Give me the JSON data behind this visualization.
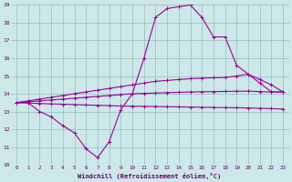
{
  "xlabel": "Windchill (Refroidissement éolien,°C)",
  "bg_color": "#cce8e8",
  "line_color": "#990099",
  "grid_color": "#99bbbb",
  "xlim": [
    -0.5,
    23.5
  ],
  "ylim": [
    10,
    19
  ],
  "yticks": [
    10,
    11,
    12,
    13,
    14,
    15,
    16,
    17,
    18,
    19
  ],
  "xticks": [
    0,
    1,
    2,
    3,
    4,
    5,
    6,
    7,
    8,
    9,
    10,
    11,
    12,
    13,
    14,
    15,
    16,
    17,
    18,
    19,
    20,
    21,
    22,
    23
  ],
  "line1_x": [
    0,
    1,
    2,
    3,
    4,
    5,
    6,
    7,
    8,
    9,
    10,
    11,
    12,
    13,
    14,
    15,
    16,
    17,
    18,
    19,
    20,
    21,
    22,
    23
  ],
  "line1_y": [
    13.5,
    13.5,
    13.0,
    12.7,
    12.2,
    11.8,
    10.9,
    10.4,
    11.3,
    13.1,
    14.0,
    16.0,
    18.3,
    18.8,
    18.9,
    19.0,
    18.3,
    17.2,
    17.2,
    15.6,
    15.1,
    14.6,
    14.1,
    14.1
  ],
  "line2_x": [
    0,
    1,
    2,
    3,
    4,
    5,
    6,
    7,
    8,
    9,
    10,
    11,
    12,
    13,
    14,
    15,
    16,
    17,
    18,
    19,
    20,
    21,
    22,
    23
  ],
  "line2_y": [
    13.5,
    13.55,
    13.6,
    13.65,
    13.7,
    13.75,
    13.8,
    13.85,
    13.9,
    13.95,
    14.0,
    14.02,
    14.04,
    14.06,
    14.08,
    14.1,
    14.11,
    14.12,
    14.13,
    14.14,
    14.15,
    14.12,
    14.1,
    14.1
  ],
  "line3_x": [
    0,
    1,
    2,
    3,
    4,
    5,
    6,
    7,
    8,
    9,
    10,
    11,
    12,
    13,
    14,
    15,
    16,
    17,
    18,
    19,
    20,
    21,
    22,
    23
  ],
  "line3_y": [
    13.5,
    13.6,
    13.7,
    13.8,
    13.9,
    14.0,
    14.1,
    14.2,
    14.3,
    14.4,
    14.5,
    14.6,
    14.7,
    14.75,
    14.8,
    14.85,
    14.88,
    14.9,
    14.92,
    15.0,
    15.1,
    14.8,
    14.5,
    14.1
  ],
  "line4_x": [
    0,
    1,
    2,
    3,
    4,
    5,
    6,
    7,
    8,
    9,
    10,
    11,
    12,
    13,
    14,
    15,
    16,
    17,
    18,
    19,
    20,
    21,
    22,
    23
  ],
  "line4_y": [
    13.5,
    13.48,
    13.45,
    13.43,
    13.41,
    13.39,
    13.37,
    13.35,
    13.33,
    13.31,
    13.3,
    13.29,
    13.28,
    13.27,
    13.26,
    13.25,
    13.24,
    13.23,
    13.22,
    13.21,
    13.2,
    13.18,
    13.16,
    13.14
  ]
}
